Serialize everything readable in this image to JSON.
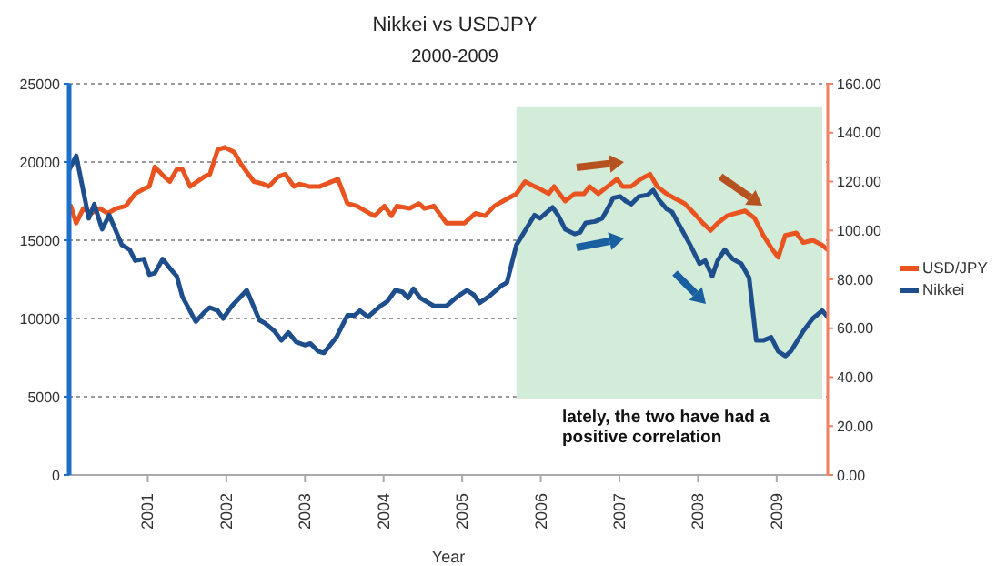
{
  "chart_data": {
    "type": "line",
    "title": "Nikkei vs USDJPY",
    "subtitle": "2000-2009",
    "xlabel": "Year",
    "annotations": [
      "lately, the two have had a positive correlation"
    ],
    "xlim": [
      2000,
      2009.65
    ],
    "xticks": [
      {
        "value": 2001,
        "label": "2001"
      },
      {
        "value": 2002,
        "label": "2002"
      },
      {
        "value": 2003,
        "label": "2003"
      },
      {
        "value": 2004,
        "label": "2004"
      },
      {
        "value": 2005,
        "label": "2005"
      },
      {
        "value": 2006,
        "label": "2006"
      },
      {
        "value": 2007,
        "label": "2007"
      },
      {
        "value": 2008,
        "label": "2008"
      },
      {
        "value": 2009,
        "label": "2009"
      }
    ],
    "ylim": [
      0,
      25000
    ],
    "yticks": [
      0,
      5000,
      10000,
      15000,
      20000,
      25000
    ],
    "y2lim": [
      0,
      160
    ],
    "y2ticks": [
      {
        "value": 0,
        "label": "0.00"
      },
      {
        "value": 20,
        "label": "20.00"
      },
      {
        "value": 40,
        "label": "40.00"
      },
      {
        "value": 60,
        "label": "60.00"
      },
      {
        "value": 80,
        "label": "80.00"
      },
      {
        "value": 100,
        "label": "100.00"
      },
      {
        "value": 120,
        "label": "120.00"
      },
      {
        "value": 140,
        "label": "140.00"
      },
      {
        "value": 160,
        "label": "160.00"
      }
    ],
    "grid": "y",
    "legend": "right",
    "marker": "none",
    "line_style": "solid",
    "bands": [
      {
        "axis": "x",
        "from": 2005.69,
        "to": 2009.58,
        "color": "#d2ecd9"
      }
    ],
    "series": [
      {
        "name": "USD/JPY",
        "color": "#e8531f",
        "axis": "y2",
        "x": [
          2000.0,
          2000.02,
          2000.09,
          2000.18,
          2000.28,
          2000.39,
          2000.49,
          2000.6,
          2000.72,
          2000.84,
          2000.95,
          2001.02,
          2001.09,
          2001.21,
          2001.28,
          2001.37,
          2001.44,
          2001.54,
          2001.63,
          2001.72,
          2001.79,
          2001.89,
          2001.98,
          2002.1,
          2002.19,
          2002.35,
          2002.47,
          2002.54,
          2002.66,
          2002.75,
          2002.86,
          2002.93,
          2003.05,
          2003.19,
          2003.42,
          2003.54,
          2003.66,
          2003.82,
          2003.89,
          2004.01,
          2004.1,
          2004.17,
          2004.33,
          2004.45,
          2004.52,
          2004.64,
          2004.8,
          2004.92,
          2005.03,
          2005.17,
          2005.29,
          2005.41,
          2005.52,
          2005.69,
          2005.8,
          2005.92,
          2005.99,
          2006.1,
          2006.17,
          2006.31,
          2006.43,
          2006.55,
          2006.62,
          2006.73,
          2006.85,
          2006.97,
          2007.04,
          2007.15,
          2007.27,
          2007.39,
          2007.48,
          2007.6,
          2007.71,
          2007.83,
          2007.95,
          2008.06,
          2008.16,
          2008.25,
          2008.37,
          2008.48,
          2008.6,
          2008.72,
          2008.83,
          2008.95,
          2009.02,
          2009.11,
          2009.25,
          2009.34,
          2009.46,
          2009.58,
          2009.65
        ],
        "values": [
          108,
          110,
          103,
          109,
          107,
          109,
          107,
          109,
          110,
          115,
          117,
          118,
          126,
          122,
          120,
          125,
          125,
          118,
          120,
          122,
          123,
          133,
          134,
          132,
          127,
          120,
          119,
          118,
          122,
          123,
          118,
          119,
          118,
          118,
          121,
          111,
          110,
          107,
          106,
          110,
          106,
          110,
          109,
          111,
          109,
          110,
          103,
          103,
          103,
          107,
          106,
          110,
          112,
          115,
          120,
          118,
          117,
          115,
          118,
          112,
          115,
          115,
          118,
          115,
          118,
          121,
          118,
          118,
          121,
          123,
          118,
          115,
          113,
          111,
          107,
          103,
          100,
          103,
          106,
          107,
          108,
          105,
          98,
          92,
          89,
          98,
          99,
          95,
          96,
          94,
          92
        ]
      },
      {
        "name": "Nikkei",
        "color": "#1f4e8c",
        "x": [
          2000.0,
          2000.09,
          2000.25,
          2000.32,
          2000.42,
          2000.51,
          2000.67,
          2000.77,
          2000.84,
          2000.95,
          2001.02,
          2001.09,
          2001.19,
          2001.3,
          2001.37,
          2001.44,
          2001.61,
          2001.72,
          2001.79,
          2001.89,
          2001.96,
          2002.07,
          2002.26,
          2002.42,
          2002.49,
          2002.61,
          2002.7,
          2002.79,
          2002.89,
          2003.0,
          2003.07,
          2003.17,
          2003.24,
          2003.4,
          2003.54,
          2003.63,
          2003.7,
          2003.8,
          2003.96,
          2004.05,
          2004.15,
          2004.24,
          2004.31,
          2004.38,
          2004.47,
          2004.64,
          2004.8,
          2004.94,
          2005.06,
          2005.15,
          2005.22,
          2005.34,
          2005.5,
          2005.57,
          2005.69,
          2005.92,
          2005.99,
          2006.15,
          2006.22,
          2006.31,
          2006.43,
          2006.5,
          2006.57,
          2006.69,
          2006.78,
          2006.85,
          2006.92,
          2007.01,
          2007.08,
          2007.15,
          2007.25,
          2007.36,
          2007.43,
          2007.5,
          2007.6,
          2007.67,
          2007.78,
          2007.9,
          2008.02,
          2008.09,
          2008.18,
          2008.25,
          2008.34,
          2008.44,
          2008.55,
          2008.65,
          2008.74,
          2008.83,
          2008.93,
          2009.02,
          2009.11,
          2009.18,
          2009.34,
          2009.46,
          2009.58,
          2009.65
        ],
        "values": [
          19500,
          20400,
          16400,
          17300,
          15700,
          16600,
          14700,
          14400,
          13700,
          13800,
          12800,
          12900,
          13800,
          13100,
          12700,
          11400,
          9800,
          10400,
          10700,
          10500,
          10000,
          10800,
          11800,
          9900,
          9700,
          9200,
          8600,
          9100,
          8500,
          8300,
          8400,
          7900,
          7800,
          8800,
          10200,
          10200,
          10500,
          10100,
          10800,
          11100,
          11800,
          11700,
          11300,
          11900,
          11300,
          10800,
          10800,
          11400,
          11800,
          11500,
          11000,
          11400,
          12100,
          12300,
          14700,
          16600,
          16400,
          17100,
          16600,
          15700,
          15400,
          15500,
          16100,
          16200,
          16400,
          17000,
          17700,
          17800,
          17500,
          17300,
          17800,
          17900,
          18200,
          17600,
          17000,
          16800,
          15800,
          14700,
          13500,
          13700,
          12700,
          13700,
          14400,
          13800,
          13500,
          12600,
          8600,
          8600,
          8800,
          7900,
          7600,
          7900,
          9200,
          10000,
          10500,
          10100
        ]
      }
    ]
  }
}
